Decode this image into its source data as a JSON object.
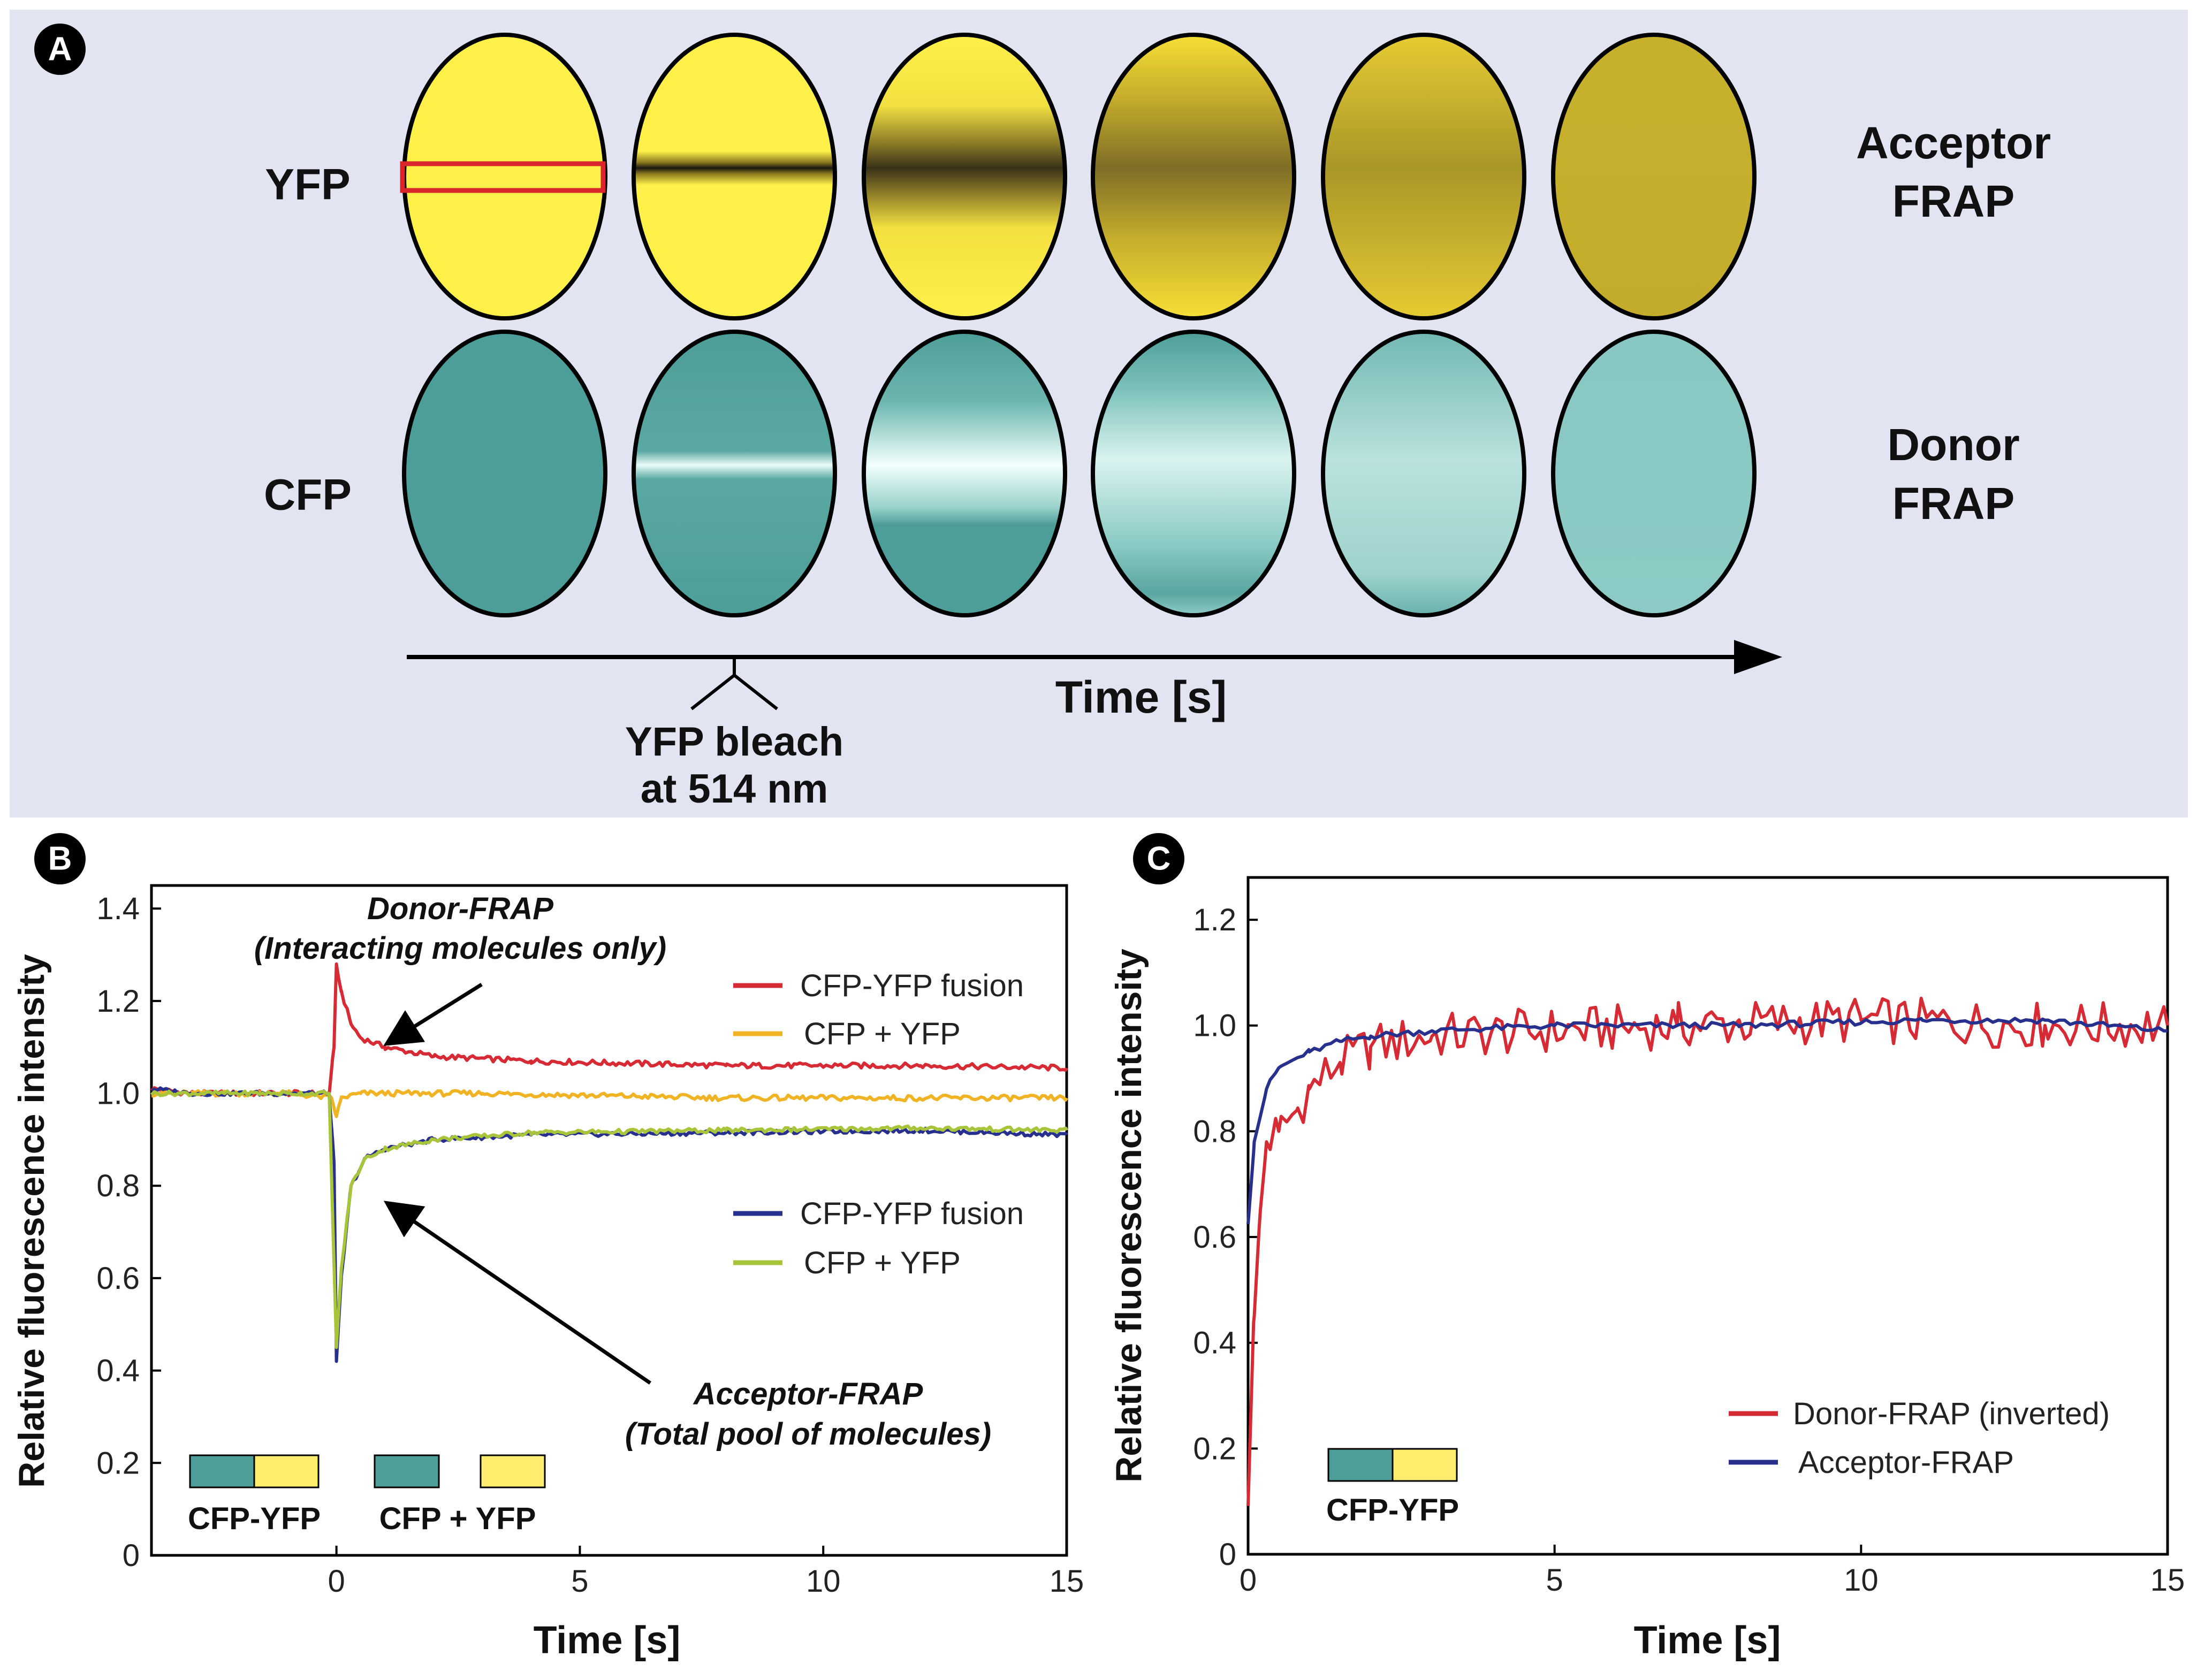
{
  "panel_a": {
    "letter": "A",
    "row_labels": [
      "YFP",
      "CFP"
    ],
    "right_labels": {
      "acceptor_line1": "Acceptor",
      "acceptor_line2": "FRAP",
      "donor_line1": "Donor",
      "donor_line2": "FRAP"
    },
    "time_label": "Time [s]",
    "bleach_label_line1": "YFP bleach",
    "bleach_label_line2": "at 514 nm",
    "colors": {
      "background": "#e2e4f2",
      "yfp": "#ffef4a",
      "yfp_dim": "#c8b42a",
      "cfp": "#4d9e98",
      "cfp_light": "#8fcac6",
      "bleach_roi": "#d8262c"
    }
  },
  "chart_data": [
    {
      "panel": "B",
      "type": "line",
      "xlabel": "Time [s]",
      "ylabel": "Relative fluorescence intensity",
      "xlim": [
        -3.8,
        15
      ],
      "ylim": [
        0,
        1.45
      ],
      "xticks": [
        0,
        5,
        10,
        15
      ],
      "yticks": [
        0,
        0.2,
        0.4,
        0.6,
        0.8,
        1.0,
        1.2,
        1.4
      ],
      "ytick_labels": [
        "0",
        "0.2",
        "0.4",
        "0.6",
        "0.8",
        "1.0",
        "1.2",
        "1.4"
      ],
      "series": [
        {
          "name": "CFP-YFP fusion",
          "color": "#d62a35",
          "points": [
            [
              -3.8,
              1.01
            ],
            [
              -3,
              1.0
            ],
            [
              -2,
              1.0
            ],
            [
              -1,
              1.0
            ],
            [
              -0.15,
              1.0
            ],
            [
              -0.05,
              1.1
            ],
            [
              0,
              1.28
            ],
            [
              0.1,
              1.22
            ],
            [
              0.3,
              1.15
            ],
            [
              0.5,
              1.12
            ],
            [
              1,
              1.1
            ],
            [
              2,
              1.08
            ],
            [
              4,
              1.07
            ],
            [
              8,
              1.06
            ],
            [
              12,
              1.06
            ],
            [
              15,
              1.055
            ]
          ]
        },
        {
          "name": "CFP + YFP",
          "color": "#f0b324",
          "points": [
            [
              -3.8,
              1.0
            ],
            [
              -1,
              1.0
            ],
            [
              -0.1,
              0.99
            ],
            [
              0,
              0.95
            ],
            [
              0.1,
              0.99
            ],
            [
              0.5,
              1.0
            ],
            [
              3,
              1.0
            ],
            [
              8,
              0.99
            ],
            [
              15,
              0.99
            ]
          ]
        },
        {
          "name": "CFP-YFP fusion",
          "color": "#27308c",
          "points": [
            [
              -3.8,
              1.01
            ],
            [
              -3,
              1.0
            ],
            [
              -2,
              1.0
            ],
            [
              -1,
              1.0
            ],
            [
              -0.15,
              1.0
            ],
            [
              -0.05,
              0.85
            ],
            [
              0,
              0.42
            ],
            [
              0.1,
              0.6
            ],
            [
              0.3,
              0.8
            ],
            [
              0.6,
              0.86
            ],
            [
              1,
              0.88
            ],
            [
              2,
              0.9
            ],
            [
              4,
              0.91
            ],
            [
              8,
              0.915
            ],
            [
              12,
              0.92
            ],
            [
              15,
              0.91
            ]
          ]
        },
        {
          "name": "CFP + YFP",
          "color": "#a8c43a",
          "points": [
            [
              -3.8,
              1.0
            ],
            [
              -1,
              1.0
            ],
            [
              -0.15,
              1.0
            ],
            [
              0,
              0.45
            ],
            [
              0.1,
              0.62
            ],
            [
              0.3,
              0.8
            ],
            [
              0.6,
              0.86
            ],
            [
              1,
              0.88
            ],
            [
              2,
              0.9
            ],
            [
              4,
              0.915
            ],
            [
              8,
              0.92
            ],
            [
              12,
              0.925
            ],
            [
              15,
              0.92
            ]
          ]
        }
      ],
      "legend": {
        "location": "right",
        "entries": [
          "CFP-YFP fusion",
          "CFP + YFP",
          "CFP-YFP fusion",
          "CFP + YFP"
        ]
      },
      "annotations": [
        "Donor-FRAP",
        "(Interacting molecules only)",
        "Acceptor-FRAP",
        "(Total pool of molecules)",
        "CFP-YFP",
        "CFP + YFP"
      ],
      "panel_letter": "B"
    },
    {
      "panel": "C",
      "type": "line",
      "xlabel": "Time [s]",
      "ylabel": "Relative fluorescence intensity",
      "xlim": [
        0,
        15
      ],
      "ylim": [
        0,
        1.28
      ],
      "xticks": [
        0,
        5,
        10,
        15
      ],
      "yticks": [
        0,
        0.2,
        0.4,
        0.6,
        0.8,
        1.0,
        1.2
      ],
      "ytick_labels": [
        "0",
        "0.2",
        "0.4",
        "0.6",
        "0.8",
        "1.0",
        "1.2"
      ],
      "series": [
        {
          "name": "Donor-FRAP (inverted)",
          "color": "#d62a35",
          "points": [
            [
              0,
              0.12
            ],
            [
              0.1,
              0.45
            ],
            [
              0.2,
              0.65
            ],
            [
              0.3,
              0.78
            ],
            [
              0.5,
              0.8
            ],
            [
              0.8,
              0.84
            ],
            [
              1,
              0.88
            ],
            [
              1.5,
              0.93
            ],
            [
              2,
              0.96
            ],
            [
              3,
              0.98
            ],
            [
              5,
              0.99
            ],
            [
              7,
              1.0
            ],
            [
              10,
              1.01
            ],
            [
              13,
              1.0
            ],
            [
              15,
              1.0
            ]
          ]
        },
        {
          "name": "Acceptor-FRAP",
          "color": "#27308c",
          "points": [
            [
              0,
              0.63
            ],
            [
              0.1,
              0.78
            ],
            [
              0.3,
              0.88
            ],
            [
              0.5,
              0.92
            ],
            [
              1,
              0.95
            ],
            [
              1.5,
              0.97
            ],
            [
              2,
              0.98
            ],
            [
              3,
              0.99
            ],
            [
              5,
              1.0
            ],
            [
              8,
              1.0
            ],
            [
              11,
              1.01
            ],
            [
              13,
              1.01
            ],
            [
              15,
              0.99
            ]
          ]
        }
      ],
      "legend": {
        "location": "bottom-right",
        "entries": [
          "Donor-FRAP (inverted)",
          "Acceptor-FRAP"
        ]
      },
      "annotations": [
        "CFP-YFP"
      ],
      "panel_letter": "C"
    }
  ]
}
